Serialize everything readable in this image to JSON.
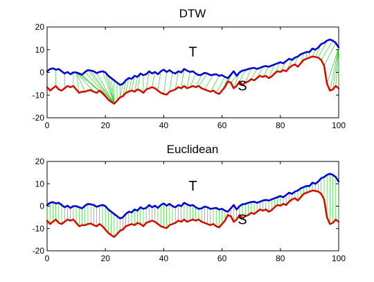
{
  "chart_data": [
    {
      "type": "line",
      "title": "DTW",
      "xlim": [
        0,
        100
      ],
      "ylim": [
        -20,
        20
      ],
      "xticks": [
        "0",
        "20",
        "40",
        "60",
        "80",
        "100"
      ],
      "yticks": [
        "20",
        "10",
        "0",
        "-10",
        "-20"
      ],
      "grid": false,
      "annotations": [
        {
          "text": "T",
          "x": 50,
          "y": 7
        },
        {
          "text": "S",
          "x": 67,
          "y": -8
        }
      ],
      "series": [
        {
          "key": "T",
          "color": "#0000cc",
          "x": [
            0,
            1,
            2,
            3,
            4,
            5,
            6,
            7,
            8,
            9,
            10,
            11,
            12,
            13,
            14,
            15,
            16,
            17,
            18,
            19,
            20,
            21,
            22,
            23,
            24,
            25,
            26,
            27,
            28,
            29,
            30,
            31,
            32,
            33,
            34,
            35,
            36,
            37,
            38,
            39,
            40,
            41,
            42,
            43,
            44,
            45,
            46,
            47,
            48,
            49,
            50,
            51,
            52,
            53,
            54,
            55,
            56,
            57,
            58,
            59,
            60,
            61,
            62,
            63,
            64,
            65,
            66,
            67,
            68,
            69,
            70,
            71,
            72,
            73,
            74,
            75,
            76,
            77,
            78,
            79,
            80,
            81,
            82,
            83,
            84,
            85,
            86,
            87,
            88,
            89,
            90,
            91,
            92,
            93,
            94,
            95,
            96,
            97,
            98,
            99,
            100
          ],
          "values": [
            0.5,
            1.5,
            1.8,
            1.2,
            1.5,
            0.5,
            -0.5,
            0.2,
            -0.8,
            0.0,
            0.0,
            -0.5,
            -1.0,
            0.2,
            1.0,
            0.8,
            0.5,
            -0.3,
            0.2,
            0.5,
            0.0,
            -1.5,
            -2.5,
            -3.5,
            -4.5,
            -5.5,
            -5.0,
            -3.5,
            -2.5,
            -2.8,
            -1.5,
            -2.0,
            -0.5,
            -1.2,
            -0.8,
            0.5,
            -0.5,
            0.2,
            -0.8,
            0.5,
            1.2,
            0.2,
            1.0,
            0.0,
            -0.5,
            0.5,
            0.0,
            1.5,
            0.8,
            0.2,
            0.5,
            -0.5,
            -1.2,
            -1.0,
            -0.2,
            -0.5,
            -1.2,
            -1.0,
            -0.8,
            -1.5,
            -1.2,
            -2.0,
            -2.5,
            -1.0,
            0.5,
            -1.5,
            0.0,
            0.8,
            1.0,
            1.5,
            1.8,
            2.0,
            1.5,
            2.0,
            2.5,
            2.8,
            2.5,
            3.0,
            3.5,
            4.0,
            4.5,
            4.0,
            5.0,
            6.0,
            5.5,
            6.5,
            7.0,
            8.0,
            8.5,
            9.0,
            9.0,
            10.5,
            10.0,
            11.0,
            12.5,
            13.0,
            14.0,
            14.5,
            14.0,
            13.0,
            11.0
          ]
        },
        {
          "key": "S",
          "color": "#cc1100",
          "x": [
            0,
            1,
            2,
            3,
            4,
            5,
            6,
            7,
            8,
            9,
            10,
            11,
            12,
            13,
            14,
            15,
            16,
            17,
            18,
            19,
            20,
            21,
            22,
            23,
            24,
            25,
            26,
            27,
            28,
            29,
            30,
            31,
            32,
            33,
            34,
            35,
            36,
            37,
            38,
            39,
            40,
            41,
            42,
            43,
            44,
            45,
            46,
            47,
            48,
            49,
            50,
            51,
            52,
            53,
            54,
            55,
            56,
            57,
            58,
            59,
            60,
            61,
            62,
            63,
            64,
            65,
            66,
            67,
            68,
            69,
            70,
            71,
            72,
            73,
            74,
            75,
            76,
            77,
            78,
            79,
            80,
            81,
            82,
            83,
            84,
            85,
            86,
            87,
            88,
            89,
            90,
            91,
            92,
            93,
            94,
            95,
            96,
            97,
            98,
            99,
            100
          ],
          "values": [
            -6.5,
            -8.0,
            -7.0,
            -6.0,
            -7.5,
            -8.0,
            -7.0,
            -6.0,
            -6.5,
            -6.0,
            -7.5,
            -9.0,
            -8.5,
            -8.5,
            -8.0,
            -7.8,
            -8.5,
            -9.0,
            -8.0,
            -9.0,
            -10.5,
            -12.0,
            -13.0,
            -13.8,
            -12.5,
            -11.0,
            -10.5,
            -9.0,
            -8.5,
            -8.0,
            -8.5,
            -7.5,
            -8.0,
            -9.0,
            -7.5,
            -7.0,
            -6.5,
            -7.0,
            -8.0,
            -9.0,
            -9.5,
            -9.8,
            -8.5,
            -8.0,
            -7.5,
            -6.5,
            -7.0,
            -6.0,
            -7.0,
            -6.5,
            -6.0,
            -6.5,
            -6.0,
            -7.0,
            -7.5,
            -8.0,
            -8.5,
            -8.0,
            -9.0,
            -9.5,
            -8.0,
            -6.5,
            -4.0,
            -4.5,
            -7.0,
            -6.0,
            -4.0,
            -5.5,
            -4.5,
            -4.0,
            -3.0,
            -3.5,
            -2.5,
            -1.5,
            -2.0,
            -1.5,
            -2.5,
            -1.8,
            -0.5,
            0.5,
            0.2,
            1.0,
            0.5,
            2.0,
            3.0,
            3.5,
            2.5,
            4.0,
            5.5,
            6.0,
            6.5,
            7.0,
            6.8,
            6.5,
            5.5,
            3.0,
            -5.0,
            -8.0,
            -7.5,
            -6.0,
            -7.0
          ]
        }
      ]
    },
    {
      "type": "line",
      "title": "Euclidean",
      "xlim": [
        0,
        100
      ],
      "ylim": [
        -20,
        20
      ],
      "xticks": [
        "0",
        "20",
        "40",
        "60",
        "80",
        "100"
      ],
      "yticks": [
        "20",
        "10",
        "0",
        "-10",
        "-20"
      ],
      "grid": false,
      "annotations": [
        {
          "text": "T",
          "x": 50,
          "y": 7
        },
        {
          "text": "S",
          "x": 67,
          "y": -8
        }
      ],
      "series": [
        {
          "key": "T",
          "color": "#0000cc",
          "x": [
            0,
            1,
            2,
            3,
            4,
            5,
            6,
            7,
            8,
            9,
            10,
            11,
            12,
            13,
            14,
            15,
            16,
            17,
            18,
            19,
            20,
            21,
            22,
            23,
            24,
            25,
            26,
            27,
            28,
            29,
            30,
            31,
            32,
            33,
            34,
            35,
            36,
            37,
            38,
            39,
            40,
            41,
            42,
            43,
            44,
            45,
            46,
            47,
            48,
            49,
            50,
            51,
            52,
            53,
            54,
            55,
            56,
            57,
            58,
            59,
            60,
            61,
            62,
            63,
            64,
            65,
            66,
            67,
            68,
            69,
            70,
            71,
            72,
            73,
            74,
            75,
            76,
            77,
            78,
            79,
            80,
            81,
            82,
            83,
            84,
            85,
            86,
            87,
            88,
            89,
            90,
            91,
            92,
            93,
            94,
            95,
            96,
            97,
            98,
            99,
            100
          ],
          "values": [
            0.5,
            1.5,
            1.8,
            1.2,
            1.5,
            0.5,
            -0.5,
            0.2,
            -0.8,
            0.0,
            0.0,
            -0.5,
            -1.0,
            0.2,
            1.0,
            0.8,
            0.5,
            -0.3,
            0.2,
            0.5,
            0.0,
            -1.5,
            -2.5,
            -3.5,
            -4.5,
            -5.5,
            -5.0,
            -3.5,
            -2.5,
            -2.8,
            -1.5,
            -2.0,
            -0.5,
            -1.2,
            -0.8,
            0.5,
            -0.5,
            0.2,
            -0.8,
            0.5,
            1.2,
            0.2,
            1.0,
            0.0,
            -0.5,
            0.5,
            0.0,
            1.5,
            0.8,
            0.2,
            0.5,
            -0.5,
            -1.2,
            -1.0,
            -0.2,
            -0.5,
            -1.2,
            -1.0,
            -0.8,
            -1.5,
            -1.2,
            -2.0,
            -2.5,
            -1.0,
            0.5,
            -1.5,
            0.0,
            0.8,
            1.0,
            1.5,
            1.8,
            2.0,
            1.5,
            2.0,
            2.5,
            2.8,
            2.5,
            3.0,
            3.5,
            4.0,
            4.5,
            4.0,
            5.0,
            6.0,
            5.5,
            6.5,
            7.0,
            8.0,
            8.5,
            9.0,
            9.0,
            10.5,
            10.0,
            11.0,
            12.5,
            13.0,
            14.0,
            14.5,
            14.0,
            13.0,
            11.0
          ]
        },
        {
          "key": "S",
          "color": "#cc1100",
          "x": [
            0,
            1,
            2,
            3,
            4,
            5,
            6,
            7,
            8,
            9,
            10,
            11,
            12,
            13,
            14,
            15,
            16,
            17,
            18,
            19,
            20,
            21,
            22,
            23,
            24,
            25,
            26,
            27,
            28,
            29,
            30,
            31,
            32,
            33,
            34,
            35,
            36,
            37,
            38,
            39,
            40,
            41,
            42,
            43,
            44,
            45,
            46,
            47,
            48,
            49,
            50,
            51,
            52,
            53,
            54,
            55,
            56,
            57,
            58,
            59,
            60,
            61,
            62,
            63,
            64,
            65,
            66,
            67,
            68,
            69,
            70,
            71,
            72,
            73,
            74,
            75,
            76,
            77,
            78,
            79,
            80,
            81,
            82,
            83,
            84,
            85,
            86,
            87,
            88,
            89,
            90,
            91,
            92,
            93,
            94,
            95,
            96,
            97,
            98,
            99,
            100
          ],
          "values": [
            -6.5,
            -8.0,
            -7.0,
            -6.0,
            -7.5,
            -8.0,
            -7.0,
            -6.0,
            -6.5,
            -6.0,
            -7.5,
            -9.0,
            -8.5,
            -8.5,
            -8.0,
            -7.8,
            -8.5,
            -9.0,
            -8.0,
            -9.0,
            -10.5,
            -12.0,
            -13.0,
            -13.8,
            -12.5,
            -11.0,
            -10.5,
            -9.0,
            -8.5,
            -8.0,
            -8.5,
            -7.5,
            -8.0,
            -9.0,
            -7.5,
            -7.0,
            -6.5,
            -7.0,
            -8.0,
            -9.0,
            -9.5,
            -9.8,
            -8.5,
            -8.0,
            -7.5,
            -6.5,
            -7.0,
            -6.0,
            -7.0,
            -6.5,
            -6.0,
            -6.5,
            -6.0,
            -7.0,
            -7.5,
            -8.0,
            -8.5,
            -8.0,
            -9.0,
            -9.5,
            -8.0,
            -6.5,
            -4.0,
            -4.5,
            -7.0,
            -6.0,
            -4.0,
            -5.5,
            -4.5,
            -4.0,
            -3.0,
            -3.5,
            -2.5,
            -1.5,
            -2.0,
            -1.5,
            -2.5,
            -1.8,
            -0.5,
            0.5,
            0.2,
            1.0,
            0.5,
            2.0,
            3.0,
            3.5,
            2.5,
            4.0,
            5.5,
            6.0,
            6.5,
            7.0,
            6.8,
            6.5,
            5.5,
            3.0,
            -5.0,
            -8.0,
            -7.5,
            -6.0,
            -7.0
          ]
        }
      ],
      "connector_color": "#33cc33"
    }
  ],
  "dtw_connector_color": "#33cc33",
  "dtw_warping": [
    [
      3,
      3
    ],
    [
      6,
      6
    ],
    [
      9,
      9
    ],
    [
      10,
      11
    ],
    [
      10,
      13
    ],
    [
      10,
      16
    ],
    [
      10,
      19
    ],
    [
      11,
      21
    ],
    [
      12,
      22
    ],
    [
      13,
      23
    ],
    [
      14,
      23
    ],
    [
      15,
      23
    ],
    [
      17,
      23
    ],
    [
      19,
      23
    ],
    [
      20,
      23
    ],
    [
      21,
      23
    ],
    [
      22,
      23
    ],
    [
      23,
      23
    ],
    [
      24,
      24
    ],
    [
      25,
      25
    ],
    [
      26,
      25
    ],
    [
      27,
      26
    ],
    [
      28,
      27
    ],
    [
      29,
      28
    ],
    [
      30,
      29
    ],
    [
      31,
      30
    ],
    [
      32,
      31
    ],
    [
      33,
      33
    ],
    [
      35,
      34
    ],
    [
      37,
      36
    ],
    [
      39,
      38
    ],
    [
      41,
      40
    ],
    [
      43,
      42
    ],
    [
      45,
      44
    ],
    [
      47,
      46
    ],
    [
      49,
      48
    ],
    [
      51,
      49
    ],
    [
      53,
      51
    ],
    [
      55,
      52
    ],
    [
      57,
      54
    ],
    [
      59,
      56
    ],
    [
      61,
      58
    ],
    [
      62,
      60
    ],
    [
      63,
      61
    ],
    [
      64,
      62
    ],
    [
      65,
      63
    ],
    [
      66,
      64
    ],
    [
      68,
      66
    ],
    [
      70,
      68
    ],
    [
      72,
      70
    ],
    [
      74,
      72
    ],
    [
      76,
      74
    ],
    [
      78,
      76
    ],
    [
      80,
      78
    ],
    [
      82,
      80
    ],
    [
      84,
      82
    ],
    [
      86,
      85
    ],
    [
      88,
      87
    ],
    [
      89,
      89
    ],
    [
      90,
      90
    ],
    [
      92,
      91
    ],
    [
      94,
      92
    ],
    [
      96,
      93
    ],
    [
      98,
      94
    ],
    [
      99,
      95
    ],
    [
      100,
      96
    ],
    [
      100,
      97
    ],
    [
      100,
      98
    ],
    [
      100,
      99
    ],
    [
      100,
      100
    ]
  ]
}
